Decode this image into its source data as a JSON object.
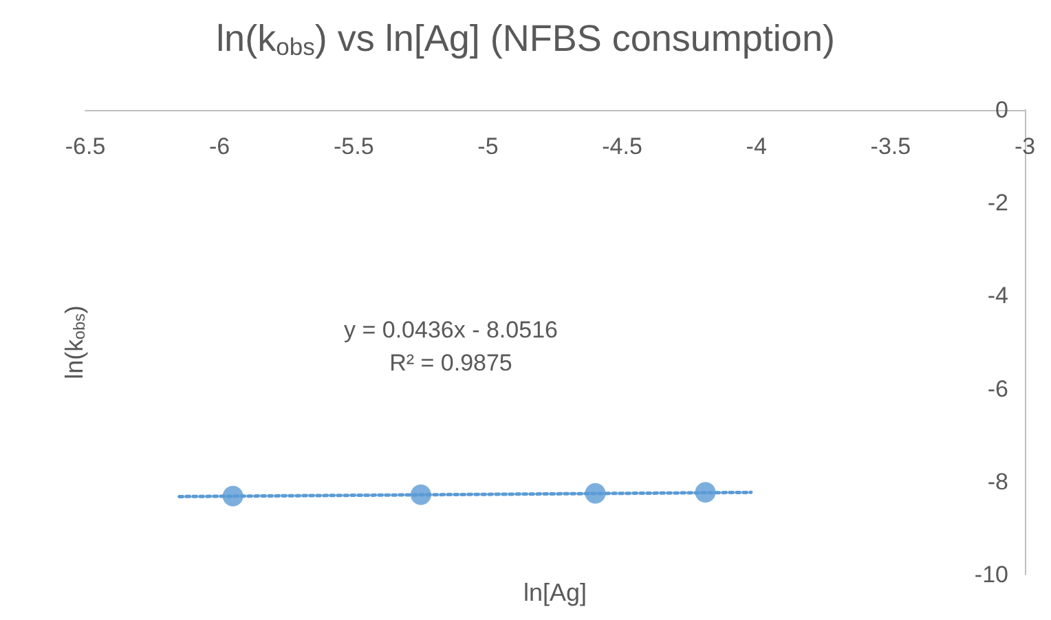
{
  "chart_data": {
    "type": "scatter",
    "title": "ln(k$_{obs}$) vs ln[Ag] (NFBS consumption)",
    "xlabel": "ln[Ag]",
    "ylabel": "ln(k$_{obs}$)",
    "x": [
      -5.95,
      -5.25,
      -4.6,
      -4.19
    ],
    "series": [
      {
        "color": "#5b9bd5",
        "marker": "circle",
        "values": [
          -8.31,
          -8.28,
          -8.25,
          -8.23
        ]
      },
      {
        "type": "line",
        "color": "#5b9bd5",
        "marker": "none",
        "line_style": "dotted",
        "x": [
          -6.15,
          -4.02
        ],
        "values": [
          -8.32,
          -8.23
        ]
      }
    ],
    "xlim": [
      -6.5,
      -3
    ],
    "xticks": [
      -6.5,
      -6,
      -5.5,
      -5,
      -4.5,
      -4,
      -3.5,
      -3
    ],
    "ylim": [
      -10,
      0
    ],
    "yticks": [
      -10,
      -8,
      -6,
      -4,
      -2,
      0
    ],
    "grid": false,
    "annotations": [
      "y = 0.0436x - 8.0516\nR² = 0.9875"
    ]
  }
}
